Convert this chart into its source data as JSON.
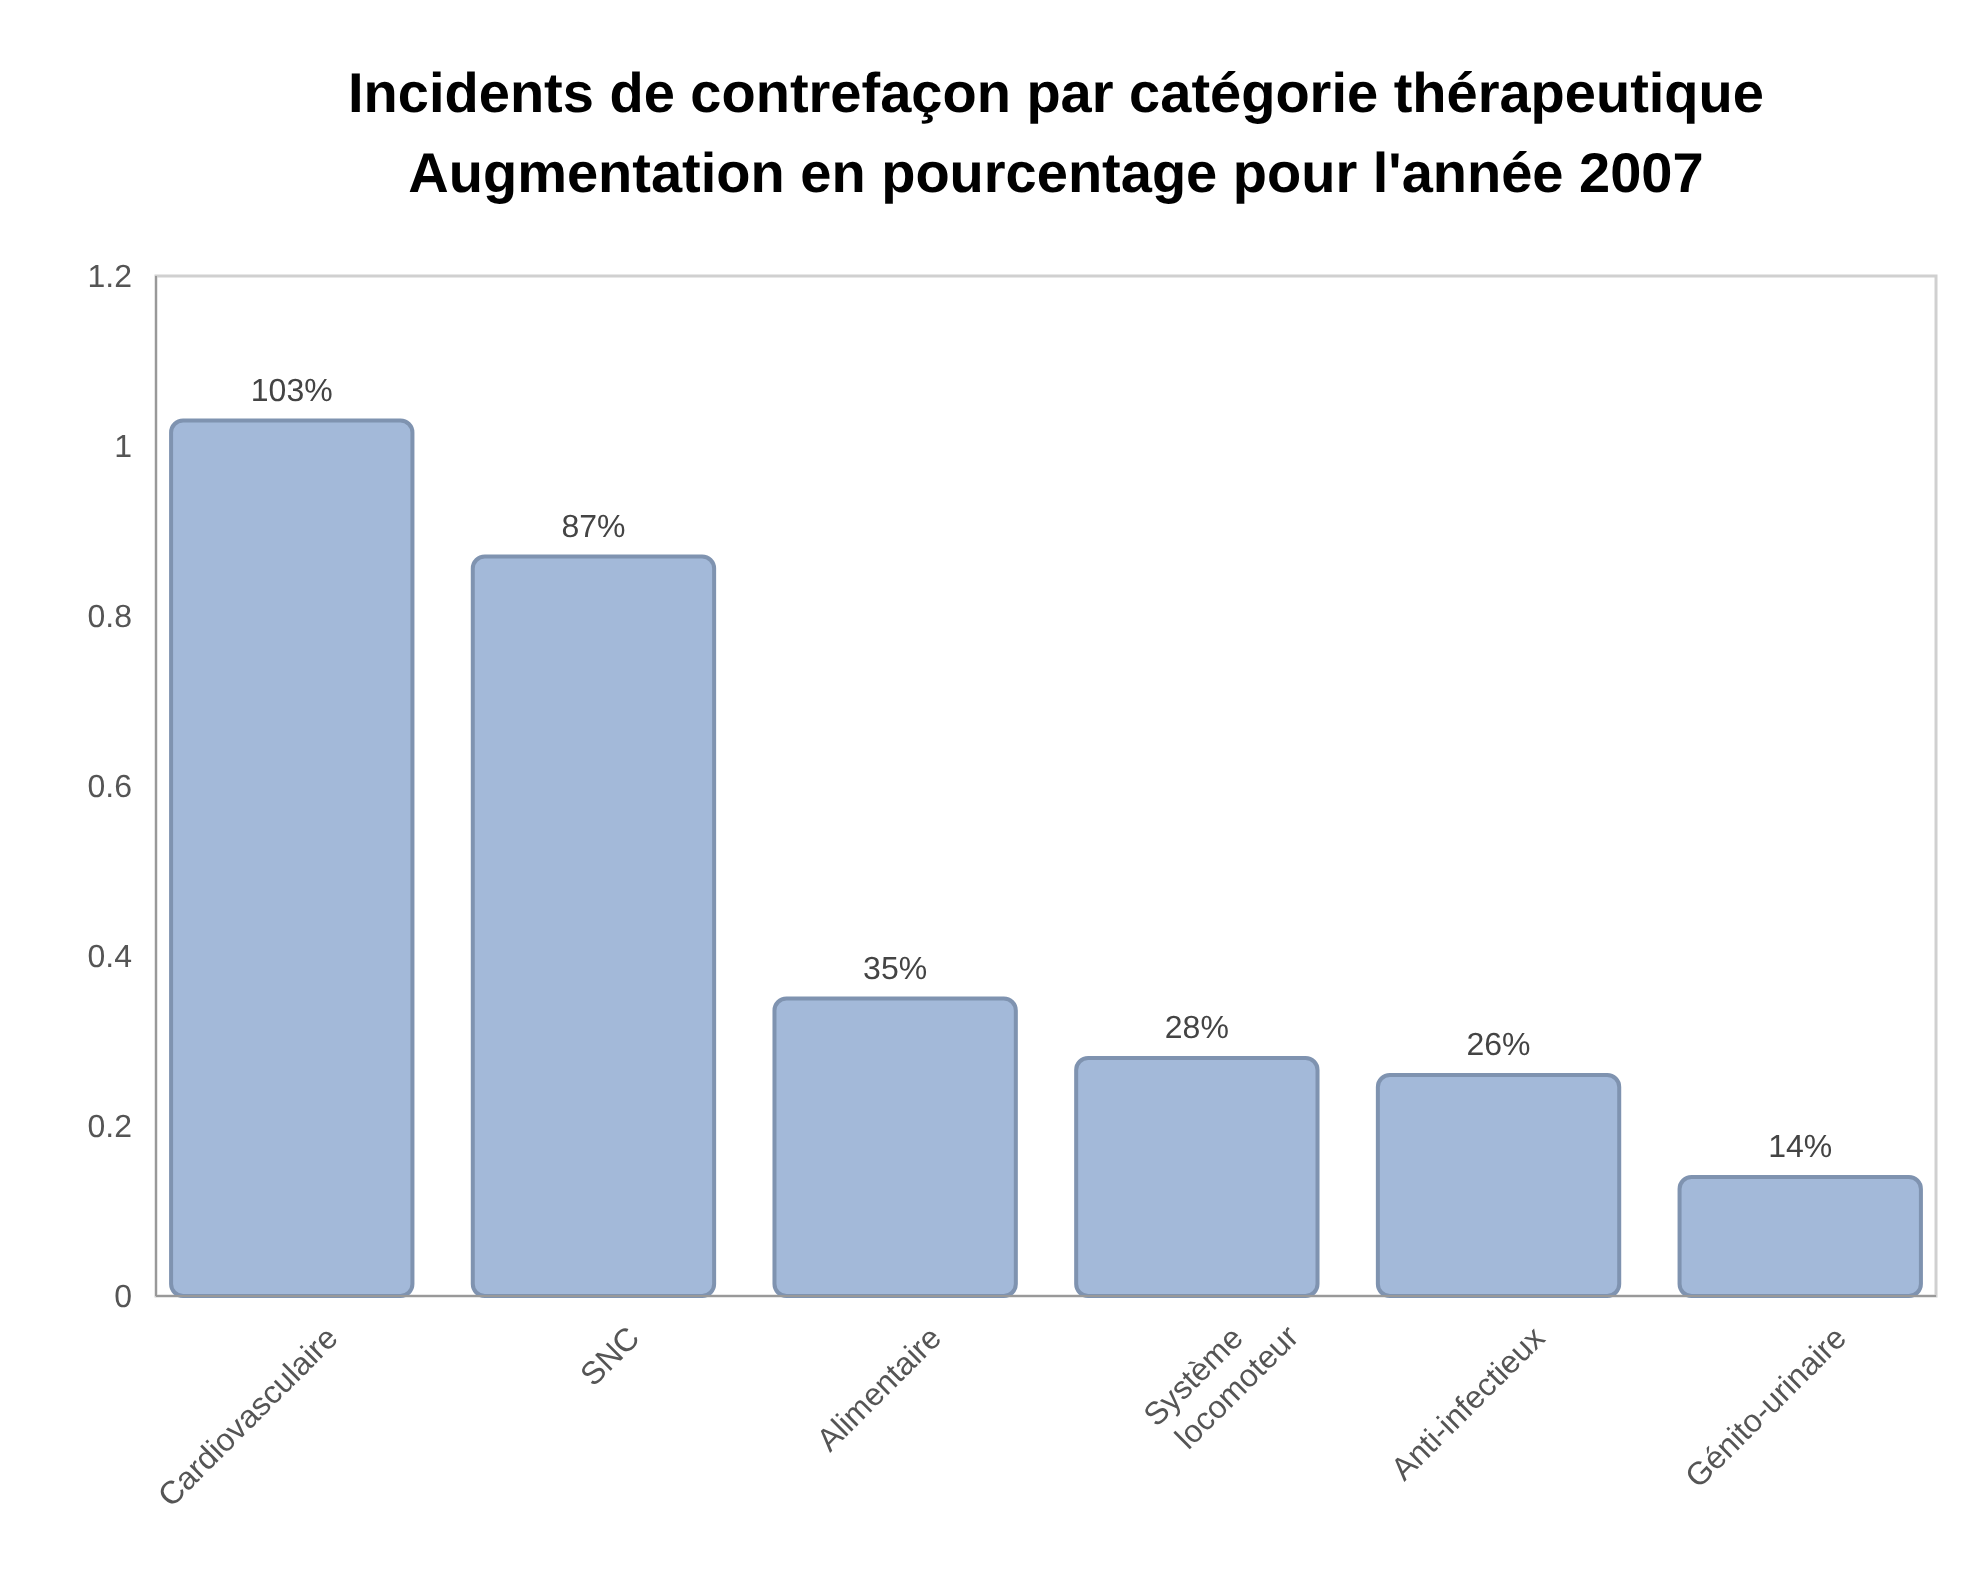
{
  "chart_data": {
    "type": "bar",
    "title": "Incidents de contrefaçon par catégorie thérapeutique",
    "subtitle": "Augmentation en pourcentage pour l'année 2007",
    "categories": [
      "Cardiovasculaire",
      "SNC",
      "Alimentaire",
      "Système locomoteur",
      "Anti-infectieux",
      "Génito-urinaire"
    ],
    "values": [
      1.03,
      0.87,
      0.35,
      0.28,
      0.26,
      0.14
    ],
    "value_labels": [
      "103%",
      "87%",
      "35%",
      "28%",
      "26%",
      "14%"
    ],
    "color": "#a3b9d9",
    "ylim": [
      0,
      1.2
    ],
    "yticks": [
      0,
      0.2,
      0.4,
      0.6,
      0.8,
      1,
      1.2
    ],
    "grid": false
  }
}
